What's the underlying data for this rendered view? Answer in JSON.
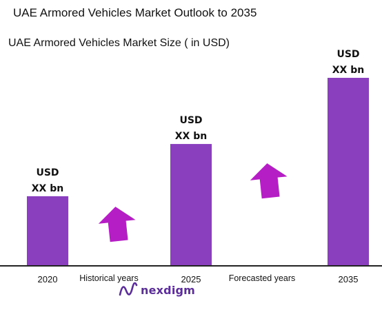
{
  "title": "UAE Armored Vehicles Market Outlook to 2035",
  "colors": {
    "bar": "#8a3fbf",
    "arrow": "#b51ec4",
    "axis": "#222222",
    "logo": "#5b2d99"
  },
  "periods": [
    "Historical years",
    "Forecasted years"
  ],
  "logo": {
    "text": "nexdigm",
    "icon": "nexdigm-wave-logo"
  },
  "chart_data": {
    "type": "bar",
    "title": "UAE Armored Vehicles Market Size ( in USD)",
    "categories": [
      "2020",
      "2025",
      "2035"
    ],
    "values": [
      1.0,
      1.75,
      2.7
    ],
    "value_labels": [
      [
        "USD",
        "XX bn"
      ],
      [
        "USD",
        "XX bn"
      ],
      [
        "USD",
        "XX bn"
      ]
    ],
    "ylim": [
      0,
      3
    ],
    "grid": false,
    "legend": "none"
  }
}
